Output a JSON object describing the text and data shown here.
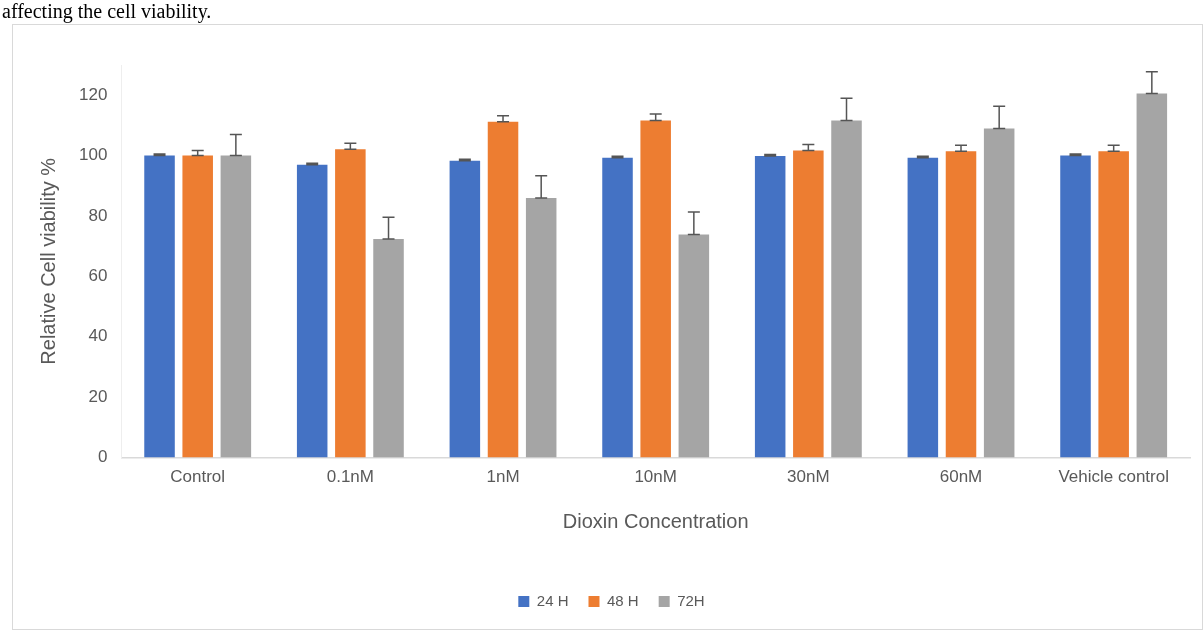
{
  "chart_data": {
    "type": "bar",
    "annotations": [
      "affecting the cell viability."
    ],
    "xlabel": "Dioxin Concentration",
    "ylabel": "Relative Cell viability %",
    "categories": [
      "Control",
      "0.1nM",
      "1nM",
      "10nM",
      "30nM",
      "60nM",
      "Vehicle control"
    ],
    "series": [
      {
        "name": "24 H",
        "color": "#4472c4",
        "values": [
          100,
          97,
          98.3,
          99.3,
          99.9,
          99.3,
          100
        ],
        "errors": [
          [
            100,
            100.5
          ],
          [
            97,
            97.5
          ],
          [
            98.3,
            98.8
          ],
          [
            99.3,
            99.8
          ],
          [
            99.9,
            100.4
          ],
          [
            99.3,
            99.8
          ],
          [
            100,
            100.5
          ]
        ]
      },
      {
        "name": "48 H",
        "color": "#ed7d31",
        "values": [
          100,
          102.1,
          111.2,
          111.6,
          101.7,
          101.4,
          101.4
        ],
        "errors": [
          [
            100,
            101.7
          ],
          [
            102.1,
            104.1
          ],
          [
            111.2,
            113.2
          ],
          [
            111.6,
            113.8
          ],
          [
            101.7,
            103.7
          ],
          [
            101.4,
            103.4
          ],
          [
            101.4,
            103.4
          ]
        ]
      },
      {
        "name": "72H",
        "color": "#a5a5a5",
        "values": [
          100,
          72.4,
          86,
          73.9,
          111.6,
          109,
          120.6
        ],
        "errors": [
          [
            100,
            107
          ],
          [
            72.4,
            79.6
          ],
          [
            86,
            93.3
          ],
          [
            73.9,
            81.3
          ],
          [
            111.6,
            119
          ],
          [
            109,
            116.3
          ],
          [
            120.6,
            127.8
          ]
        ]
      }
    ],
    "ylim": [
      0,
      130
    ],
    "yticks": [
      0,
      20,
      40,
      60,
      80,
      100,
      120
    ],
    "grid": false,
    "legend": "bottom"
  }
}
